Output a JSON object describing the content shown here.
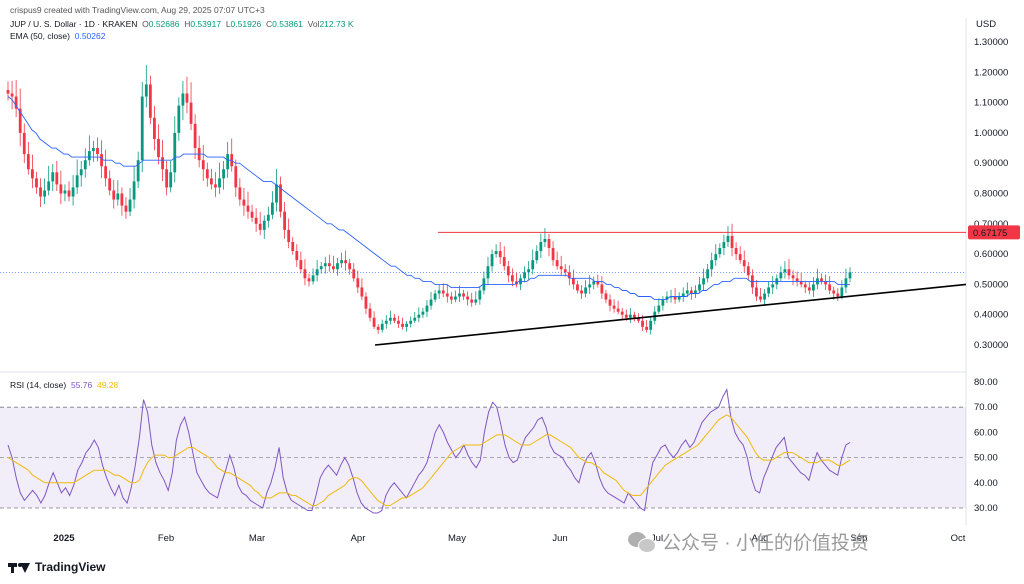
{
  "header": {
    "created": "crispus9 created with TradingView.com, Aug 29, 2025 07:07 UTC+3",
    "symbol": "JUP / U. S. Dollar · 1D · KRAKEN",
    "o_label": "O",
    "o": "0.52686",
    "h_label": "H",
    "h": "0.53917",
    "l_label": "L",
    "l": "0.51926",
    "c_label": "C",
    "c": "0.53861",
    "vol_label": "Vol",
    "vol": "212.73 K",
    "ema_label": "EMA (50, close)",
    "ema": "0.50262",
    "rsi_label": "RSI (14, close)",
    "rsi": "55.76",
    "rsi_ma": "49.28"
  },
  "colors": {
    "up": "#089981",
    "down": "#f23645",
    "ema": "#2962ff",
    "rsi": "#7e57c2",
    "rsi_ma": "#f0b90b",
    "resistance": "#f23645",
    "support": "#000000"
  },
  "chart_data": [
    {
      "type": "candlestick",
      "currency": "USD",
      "y_ticks": [
        "1.30000",
        "1.20000",
        "1.10000",
        "1.00000",
        "0.90000",
        "0.80000",
        "0.70000",
        "0.60000",
        "0.50000",
        "0.40000",
        "0.30000"
      ],
      "ylim": [
        0.25,
        1.32
      ],
      "x_ticks": [
        "2025",
        "Feb",
        "Mar",
        "Apr",
        "May",
        "Jun",
        "Jul",
        "Aug",
        "Sep",
        "Oct"
      ],
      "price_label": "0.67175",
      "resistance_level": 0.67175,
      "current_price": 0.53861,
      "support_line": [
        [
          "2025-03-28",
          0.3
        ],
        [
          "2025-10-04",
          0.5
        ]
      ],
      "ohlc_closes": [
        1.13,
        1.12,
        1.08,
        1.0,
        0.93,
        0.88,
        0.85,
        0.82,
        0.79,
        0.81,
        0.84,
        0.87,
        0.83,
        0.8,
        0.81,
        0.79,
        0.82,
        0.86,
        0.88,
        0.91,
        0.94,
        0.95,
        0.93,
        0.89,
        0.85,
        0.81,
        0.78,
        0.8,
        0.76,
        0.74,
        0.78,
        0.84,
        0.91,
        1.12,
        1.16,
        1.05,
        0.98,
        0.92,
        0.88,
        0.82,
        0.87,
        1.0,
        1.09,
        1.13,
        1.1,
        1.03,
        0.95,
        0.91,
        0.88,
        0.85,
        0.83,
        0.82,
        0.85,
        0.88,
        0.93,
        0.89,
        0.82,
        0.78,
        0.76,
        0.74,
        0.72,
        0.7,
        0.68,
        0.71,
        0.73,
        0.77,
        0.83,
        0.74,
        0.68,
        0.64,
        0.61,
        0.58,
        0.55,
        0.52,
        0.51,
        0.53,
        0.55,
        0.56,
        0.57,
        0.56,
        0.55,
        0.57,
        0.58,
        0.57,
        0.55,
        0.52,
        0.49,
        0.46,
        0.42,
        0.39,
        0.36,
        0.35,
        0.37,
        0.38,
        0.39,
        0.38,
        0.37,
        0.36,
        0.37,
        0.38,
        0.39,
        0.4,
        0.41,
        0.43,
        0.45,
        0.47,
        0.48,
        0.47,
        0.46,
        0.45,
        0.46,
        0.47,
        0.46,
        0.45,
        0.44,
        0.45,
        0.48,
        0.52,
        0.56,
        0.6,
        0.61,
        0.59,
        0.56,
        0.53,
        0.51,
        0.5,
        0.52,
        0.54,
        0.55,
        0.58,
        0.61,
        0.64,
        0.65,
        0.62,
        0.58,
        0.56,
        0.55,
        0.54,
        0.52,
        0.5,
        0.48,
        0.47,
        0.49,
        0.5,
        0.51,
        0.5,
        0.47,
        0.45,
        0.43,
        0.42,
        0.41,
        0.4,
        0.39,
        0.4,
        0.39,
        0.38,
        0.36,
        0.35,
        0.38,
        0.41,
        0.43,
        0.45,
        0.46,
        0.46,
        0.45,
        0.46,
        0.47,
        0.48,
        0.47,
        0.48,
        0.5,
        0.52,
        0.55,
        0.58,
        0.6,
        0.62,
        0.64,
        0.66,
        0.62,
        0.6,
        0.58,
        0.56,
        0.53,
        0.49,
        0.46,
        0.45,
        0.47,
        0.49,
        0.5,
        0.52,
        0.54,
        0.55,
        0.53,
        0.52,
        0.51,
        0.5,
        0.49,
        0.48,
        0.5,
        0.52,
        0.51,
        0.5,
        0.48,
        0.47,
        0.46,
        0.49,
        0.52,
        0.54
      ],
      "ema_series": [
        1.12,
        1.11,
        1.09,
        1.07,
        1.05,
        1.03,
        1.01,
        1.0,
        0.98,
        0.97,
        0.96,
        0.95,
        0.95,
        0.94,
        0.93,
        0.93,
        0.92,
        0.92,
        0.92,
        0.92,
        0.92,
        0.92,
        0.92,
        0.92,
        0.91,
        0.91,
        0.91,
        0.9,
        0.9,
        0.89,
        0.89,
        0.89,
        0.89,
        0.9,
        0.91,
        0.91,
        0.91,
        0.91,
        0.91,
        0.91,
        0.91,
        0.91,
        0.92,
        0.92,
        0.93,
        0.93,
        0.93,
        0.93,
        0.93,
        0.93,
        0.92,
        0.92,
        0.92,
        0.92,
        0.92,
        0.91,
        0.91,
        0.9,
        0.9,
        0.89,
        0.88,
        0.87,
        0.86,
        0.85,
        0.84,
        0.84,
        0.84,
        0.83,
        0.82,
        0.81,
        0.8,
        0.79,
        0.78,
        0.77,
        0.76,
        0.75,
        0.74,
        0.73,
        0.72,
        0.71,
        0.7,
        0.7,
        0.69,
        0.68,
        0.68,
        0.67,
        0.66,
        0.65,
        0.64,
        0.63,
        0.62,
        0.61,
        0.6,
        0.59,
        0.58,
        0.57,
        0.56,
        0.56,
        0.55,
        0.54,
        0.53,
        0.53,
        0.52,
        0.52,
        0.51,
        0.51,
        0.51,
        0.5,
        0.5,
        0.5,
        0.5,
        0.49,
        0.49,
        0.49,
        0.49,
        0.49,
        0.49,
        0.49,
        0.49,
        0.5,
        0.5,
        0.5,
        0.5,
        0.5,
        0.5,
        0.5,
        0.5,
        0.5,
        0.51,
        0.51,
        0.51,
        0.52,
        0.52,
        0.53,
        0.53,
        0.53,
        0.53,
        0.53,
        0.53,
        0.53,
        0.53,
        0.52,
        0.52,
        0.52,
        0.52,
        0.52,
        0.52,
        0.51,
        0.51,
        0.51,
        0.5,
        0.5,
        0.49,
        0.49,
        0.48,
        0.48,
        0.47,
        0.47,
        0.46,
        0.46,
        0.46,
        0.46,
        0.45,
        0.45,
        0.45,
        0.45,
        0.46,
        0.46,
        0.46,
        0.46,
        0.46,
        0.47,
        0.47,
        0.47,
        0.48,
        0.48,
        0.49,
        0.5,
        0.5,
        0.51,
        0.51,
        0.51,
        0.52,
        0.52,
        0.52,
        0.52,
        0.51,
        0.51,
        0.51,
        0.51,
        0.51,
        0.51,
        0.51,
        0.51,
        0.51,
        0.51,
        0.51,
        0.51,
        0.51,
        0.51,
        0.51,
        0.51,
        0.51,
        0.51,
        0.51,
        0.51,
        0.51,
        0.51,
        0.5,
        0.5,
        0.5,
        0.5
      ]
    },
    {
      "type": "line",
      "name": "RSI (14, close)",
      "y_ticks": [
        "80.00",
        "70.00",
        "60.00",
        "50.00",
        "40.00",
        "30.00"
      ],
      "ylim": [
        28,
        81
      ],
      "band": [
        30,
        70
      ],
      "midline": 50,
      "rsi_series": [
        55,
        50,
        42,
        36,
        33,
        35,
        37,
        35,
        32,
        35,
        40,
        44,
        40,
        36,
        38,
        35,
        39,
        45,
        48,
        52,
        54,
        57,
        54,
        47,
        42,
        38,
        35,
        39,
        34,
        32,
        38,
        47,
        58,
        73,
        68,
        55,
        48,
        44,
        41,
        37,
        44,
        57,
        63,
        66,
        60,
        52,
        44,
        41,
        38,
        36,
        35,
        34,
        40,
        45,
        51,
        46,
        39,
        36,
        35,
        33,
        32,
        31,
        30,
        36,
        40,
        46,
        54,
        42,
        36,
        33,
        32,
        31,
        30,
        29,
        29,
        35,
        42,
        45,
        47,
        45,
        43,
        47,
        50,
        47,
        42,
        36,
        32,
        30,
        29,
        28,
        28,
        29,
        35,
        38,
        40,
        38,
        36,
        34,
        37,
        40,
        43,
        45,
        48,
        54,
        60,
        63,
        60,
        56,
        53,
        50,
        52,
        55,
        51,
        48,
        46,
        49,
        60,
        68,
        72,
        70,
        63,
        55,
        50,
        48,
        49,
        54,
        58,
        60,
        62,
        65,
        66,
        62,
        55,
        52,
        51,
        50,
        47,
        45,
        42,
        40,
        46,
        50,
        52,
        48,
        42,
        38,
        36,
        35,
        34,
        33,
        32,
        36,
        34,
        32,
        30,
        29,
        40,
        48,
        51,
        54,
        55,
        52,
        50,
        52,
        55,
        57,
        54,
        56,
        60,
        64,
        66,
        68,
        69,
        70,
        74,
        77,
        66,
        60,
        57,
        55,
        50,
        42,
        37,
        36,
        42,
        46,
        50,
        54,
        56,
        58,
        50,
        48,
        46,
        44,
        43,
        41,
        47,
        52,
        49,
        47,
        45,
        44,
        43,
        50,
        55,
        56
      ],
      "rsi_ma_series": [
        50,
        49,
        48,
        47,
        46,
        45,
        43,
        42,
        41,
        40,
        40,
        40,
        40,
        40,
        40,
        40,
        40,
        41,
        42,
        43,
        44,
        45,
        45,
        45,
        45,
        44,
        43,
        43,
        42,
        41,
        40,
        40,
        41,
        45,
        48,
        50,
        51,
        51,
        51,
        50,
        50,
        51,
        52,
        53,
        54,
        54,
        53,
        52,
        51,
        50,
        48,
        46,
        45,
        44,
        44,
        43,
        42,
        41,
        40,
        39,
        37,
        36,
        34,
        34,
        34,
        35,
        36,
        36,
        36,
        35,
        35,
        34,
        33,
        32,
        31,
        31,
        32,
        33,
        35,
        36,
        37,
        38,
        39,
        41,
        42,
        42,
        41,
        39,
        37,
        35,
        33,
        32,
        31,
        31,
        32,
        33,
        34,
        34,
        35,
        36,
        37,
        38,
        40,
        42,
        44,
        46,
        48,
        50,
        52,
        53,
        54,
        55,
        55,
        55,
        55,
        55,
        56,
        57,
        58,
        59,
        59,
        59,
        58,
        57,
        56,
        55,
        55,
        55,
        56,
        57,
        58,
        59,
        59,
        58,
        57,
        56,
        55,
        54,
        52,
        50,
        49,
        48,
        48,
        47,
        46,
        44,
        43,
        42,
        41,
        39,
        37,
        36,
        35,
        35,
        35,
        37,
        39,
        41,
        43,
        45,
        47,
        48,
        49,
        50,
        51,
        52,
        53,
        54,
        55,
        57,
        59,
        61,
        63,
        65,
        66,
        67,
        66,
        64,
        62,
        60,
        58,
        55,
        52,
        50,
        49,
        49,
        49,
        50,
        51,
        52,
        52,
        52,
        51,
        50,
        49,
        48,
        48,
        48,
        49,
        49,
        49,
        48,
        47,
        47,
        48,
        49
      ]
    }
  ],
  "footer": {
    "brand": "TradingView"
  },
  "watermark": {
    "text": "公众号 · 小任的价值投资"
  }
}
